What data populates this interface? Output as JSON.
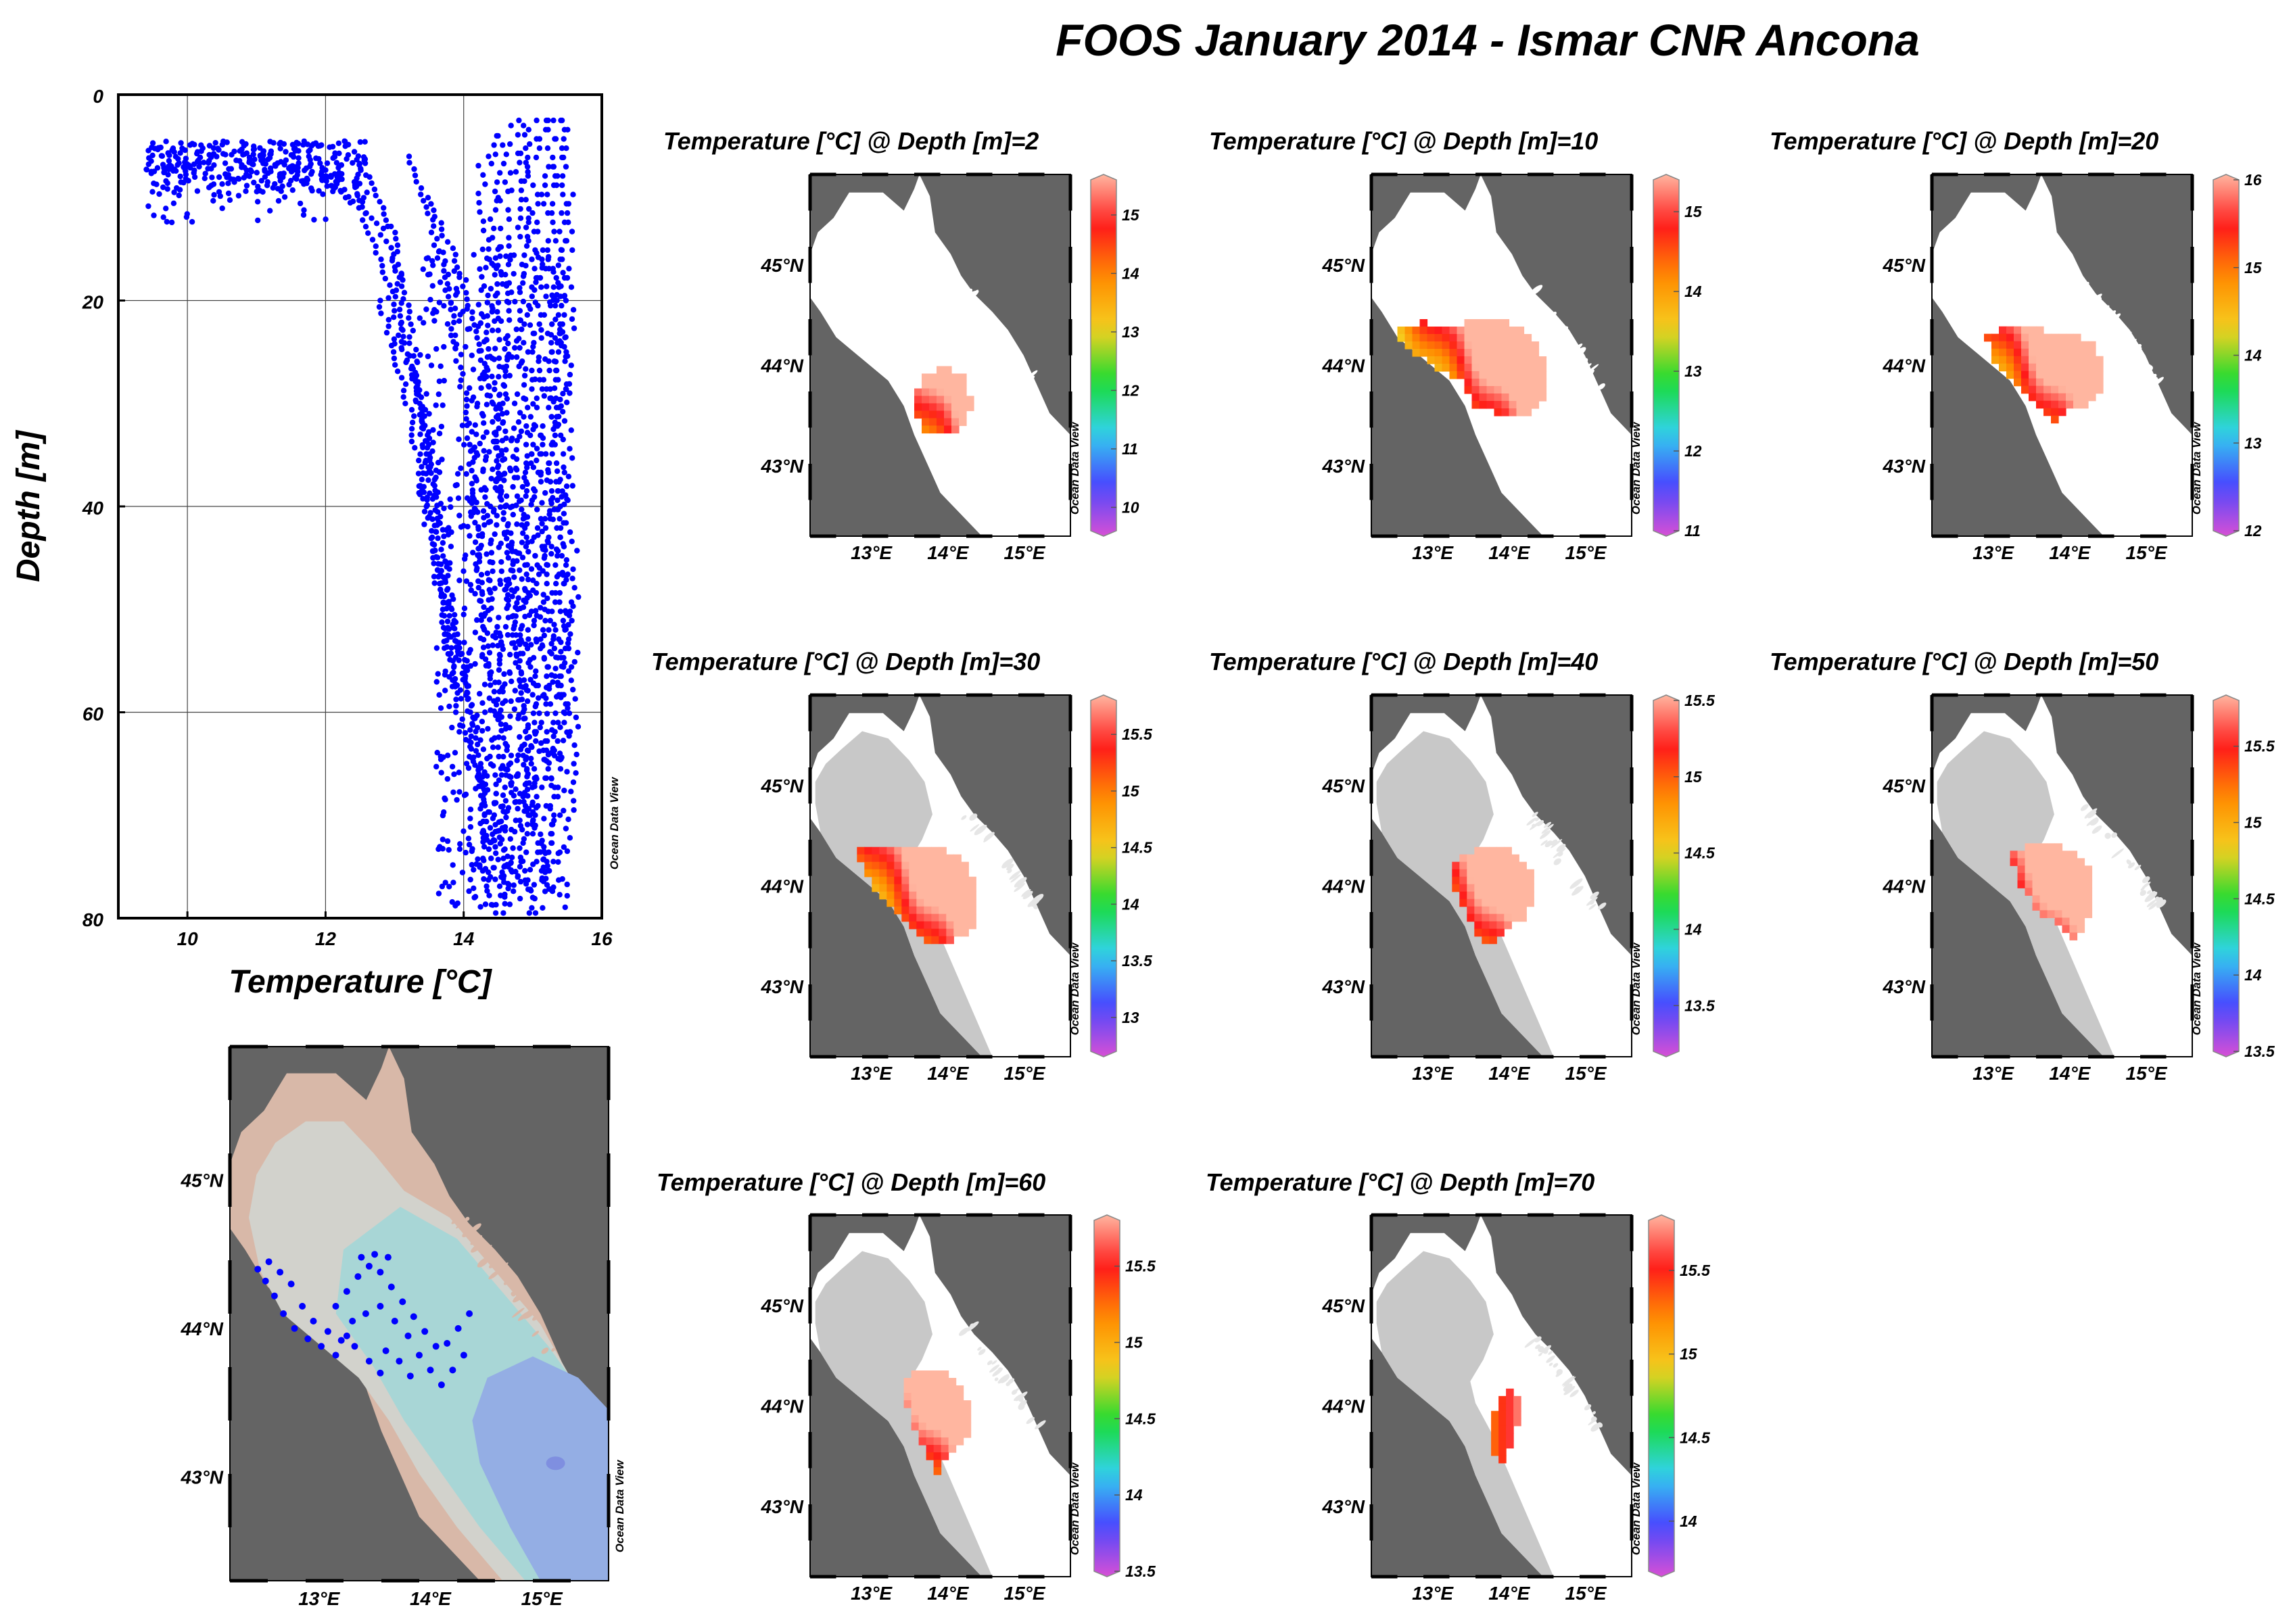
{
  "title": "FOOS January 2014 - Ismar CNR Ancona",
  "watermark": "Ocean Data View",
  "colors": {
    "land": "#646464",
    "sea": "#ffffff",
    "shelf": "#c8c8c8",
    "profile_points": "#0000ff",
    "colormap": [
      "#d74fd5",
      "#4848ff",
      "#31d2ee",
      "#18dc32",
      "#f5d020",
      "#ff8c00",
      "#ff1a1a",
      "#ffb6a0"
    ],
    "bathymetry": [
      "#d8b8a8",
      "#d2d2cc",
      "#a8d6d6",
      "#94aee4"
    ]
  },
  "profile_plot": {
    "xlabel": "Temperature [°C]",
    "ylabel": "Depth [m]",
    "xticks": [
      "10",
      "12",
      "14",
      "16"
    ],
    "yticks": [
      "0",
      "20",
      "40",
      "60",
      "80"
    ]
  },
  "map_axes": {
    "lon_ticks": [
      "13°E",
      "14°E",
      "15°E"
    ],
    "lat_ticks": [
      "45°N",
      "44°N",
      "43°N"
    ]
  },
  "chart_data": [
    {
      "type": "scatter",
      "id": "profiles",
      "xlabel": "Temperature [°C]",
      "ylabel": "Depth [m]",
      "xlim": [
        9,
        16
      ],
      "ylim": [
        80,
        0
      ],
      "grid": true,
      "series": [
        {
          "points_sample": [
            [
              9.5,
              4.7
            ],
            [
              10.2,
              5.5
            ],
            [
              10.9,
              6.4
            ],
            [
              11.6,
              7.1
            ],
            [
              12.2,
              8.0
            ],
            [
              12.6,
              9.5
            ],
            [
              12.9,
              12.8
            ],
            [
              13.1,
              17.5
            ],
            [
              13.0,
              24.2
            ],
            [
              13.3,
              27.5
            ],
            [
              13.5,
              31.0
            ],
            [
              13.6,
              36.5
            ],
            [
              13.5,
              41.0
            ],
            [
              13.8,
              45.5
            ],
            [
              14.0,
              50.5
            ],
            [
              14.1,
              55.5
            ],
            [
              14.2,
              61.5
            ],
            [
              14.3,
              66.0
            ],
            [
              14.6,
              71.5
            ],
            [
              14.7,
              75.5
            ],
            [
              15.0,
              78.0
            ],
            [
              15.3,
              77.0
            ],
            [
              15.5,
              73.5
            ],
            [
              15.45,
              60.0
            ],
            [
              15.4,
              40.0
            ],
            [
              15.35,
              20.0
            ],
            [
              15.3,
              2.5
            ],
            [
              14.8,
              2.5
            ],
            [
              14.5,
              10.0
            ],
            [
              14.2,
              30.0
            ]
          ]
        }
      ]
    },
    {
      "type": "heatmap",
      "id": "depth-2",
      "title": "Temperature [°C] @ Depth [m]=2",
      "depth_m": 2,
      "colorbar_ticks": [
        "15",
        "14",
        "13",
        "12",
        "11",
        "10"
      ],
      "colorbar_range": [
        9.6,
        15.6
      ]
    },
    {
      "type": "heatmap",
      "id": "depth-10",
      "title": "Temperature [°C] @ Depth [m]=10",
      "depth_m": 10,
      "colorbar_ticks": [
        "15",
        "14",
        "13",
        "12",
        "11"
      ],
      "colorbar_range": [
        11.0,
        15.4
      ]
    },
    {
      "type": "heatmap",
      "id": "depth-20",
      "title": "Temperature [°C] @ Depth [m]=20",
      "depth_m": 20,
      "colorbar_ticks": [
        "16",
        "15",
        "14",
        "13",
        "12"
      ],
      "colorbar_range": [
        12.0,
        16.0
      ]
    },
    {
      "type": "heatmap",
      "id": "depth-30",
      "title": "Temperature [°C] @ Depth [m]=30",
      "depth_m": 30,
      "colorbar_ticks": [
        "15.5",
        "15",
        "14.5",
        "14",
        "13.5",
        "13"
      ],
      "colorbar_range": [
        12.7,
        15.8
      ]
    },
    {
      "type": "heatmap",
      "id": "depth-40",
      "title": "Temperature [°C] @ Depth [m]=40",
      "depth_m": 40,
      "colorbar_ticks": [
        "15.5",
        "15",
        "14.5",
        "14",
        "13.5"
      ],
      "colorbar_range": [
        13.2,
        15.5
      ]
    },
    {
      "type": "heatmap",
      "id": "depth-50",
      "title": "Temperature [°C] @ Depth [m]=50",
      "depth_m": 50,
      "colorbar_ticks": [
        "15.5",
        "15",
        "14.5",
        "14",
        "13.5"
      ],
      "colorbar_range": [
        13.5,
        15.8
      ]
    },
    {
      "type": "heatmap",
      "id": "depth-60",
      "title": "Temperature [°C] @ Depth [m]=60",
      "depth_m": 60,
      "colorbar_ticks": [
        "15.5",
        "15",
        "14.5",
        "14",
        "13.5"
      ],
      "colorbar_range": [
        13.5,
        15.8
      ]
    },
    {
      "type": "heatmap",
      "id": "depth-70",
      "title": "Temperature [°C] @ Depth [m]=70",
      "depth_m": 70,
      "colorbar_ticks": [
        "15.5",
        "15",
        "14.5",
        "14"
      ],
      "colorbar_range": [
        13.7,
        15.8
      ]
    },
    {
      "type": "scatter",
      "id": "station-map",
      "xlim": [
        12.2,
        15.6
      ],
      "ylim": [
        42.3,
        45.9
      ],
      "series": [
        {
          "points": [
            [
              12.45,
              44.4
            ],
            [
              12.52,
              44.32
            ],
            [
              12.6,
              44.22
            ],
            [
              12.68,
              44.1
            ],
            [
              12.78,
              44.0
            ],
            [
              12.9,
              43.93
            ],
            [
              13.02,
              43.88
            ],
            [
              13.15,
              43.82
            ],
            [
              12.55,
              44.45
            ],
            [
              12.65,
              44.38
            ],
            [
              12.75,
              44.3
            ],
            [
              12.85,
              44.15
            ],
            [
              12.95,
              44.05
            ],
            [
              13.08,
              43.98
            ],
            [
              13.2,
              43.92
            ],
            [
              13.32,
              43.88
            ],
            [
              13.45,
              43.78
            ],
            [
              13.55,
              43.7
            ],
            [
              13.15,
              44.15
            ],
            [
              13.25,
              44.25
            ],
            [
              13.35,
              44.35
            ],
            [
              13.45,
              44.42
            ],
            [
              13.55,
              44.38
            ],
            [
              13.65,
              44.28
            ],
            [
              13.75,
              44.18
            ],
            [
              13.85,
              44.08
            ],
            [
              13.95,
              43.98
            ],
            [
              14.05,
              43.88
            ],
            [
              13.3,
              44.05
            ],
            [
              13.42,
              44.1
            ],
            [
              13.55,
              44.15
            ],
            [
              13.68,
              44.05
            ],
            [
              13.8,
              43.95
            ],
            [
              13.9,
              43.82
            ],
            [
              14.0,
              43.72
            ],
            [
              14.1,
              43.62
            ],
            [
              13.6,
              43.85
            ],
            [
              13.72,
              43.78
            ],
            [
              13.82,
              43.68
            ],
            [
              14.15,
              43.9
            ],
            [
              14.25,
              44.0
            ],
            [
              14.35,
              44.1
            ],
            [
              14.3,
              43.82
            ],
            [
              14.2,
              43.72
            ],
            [
              13.5,
              44.5
            ],
            [
              13.38,
              44.48
            ],
            [
              13.62,
              44.48
            ],
            [
              13.25,
              43.95
            ]
          ]
        }
      ]
    }
  ]
}
